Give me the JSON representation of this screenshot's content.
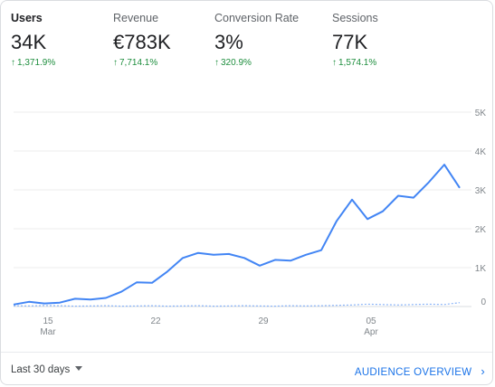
{
  "metrics": [
    {
      "label": "Users",
      "value": "34K",
      "change": "1,371.9%",
      "active": true
    },
    {
      "label": "Revenue",
      "value": "€783K",
      "change": "7,714.1%",
      "active": false
    },
    {
      "label": "Conversion Rate",
      "value": "3%",
      "change": "320.9%",
      "active": false
    },
    {
      "label": "Sessions",
      "value": "77K",
      "change": "1,574.1%",
      "active": false
    }
  ],
  "change_arrow": "↑",
  "footer": {
    "range_label": "Last 30 days",
    "overview_label": "AUDIENCE OVERVIEW",
    "overview_icon": "chevron-right-icon"
  },
  "colors": {
    "primary_line": "#4285f4",
    "comparison_line": "#8ab4f8",
    "positive_change": "#1e8e3e",
    "link": "#1a73e8"
  },
  "chart_data": {
    "type": "line",
    "y_ticks": [
      "0",
      "1K",
      "2K",
      "3K",
      "4K",
      "5K"
    ],
    "ylim": [
      0,
      5000
    ],
    "x_ticks": [
      {
        "index": 2,
        "day": "15",
        "month": "Mar"
      },
      {
        "index": 9,
        "day": "22",
        "month": ""
      },
      {
        "index": 16,
        "day": "29",
        "month": ""
      },
      {
        "index": 23,
        "day": "05",
        "month": "Apr"
      }
    ],
    "series": [
      {
        "name": "",
        "style": "solid",
        "values": [
          50,
          120,
          80,
          100,
          200,
          180,
          220,
          380,
          620,
          610,
          900,
          1250,
          1380,
          1330,
          1350,
          1250,
          1050,
          1200,
          1180,
          1330,
          1450,
          2200,
          2750,
          2250,
          2450,
          2850,
          2800,
          3200,
          3650,
          3050
        ]
      },
      {
        "name": "",
        "style": "dashed",
        "values": [
          20,
          15,
          25,
          20,
          10,
          15,
          20,
          10,
          15,
          20,
          10,
          15,
          20,
          10,
          15,
          20,
          15,
          10,
          20,
          15,
          20,
          30,
          40,
          60,
          50,
          40,
          50,
          60,
          50,
          100
        ]
      }
    ]
  }
}
